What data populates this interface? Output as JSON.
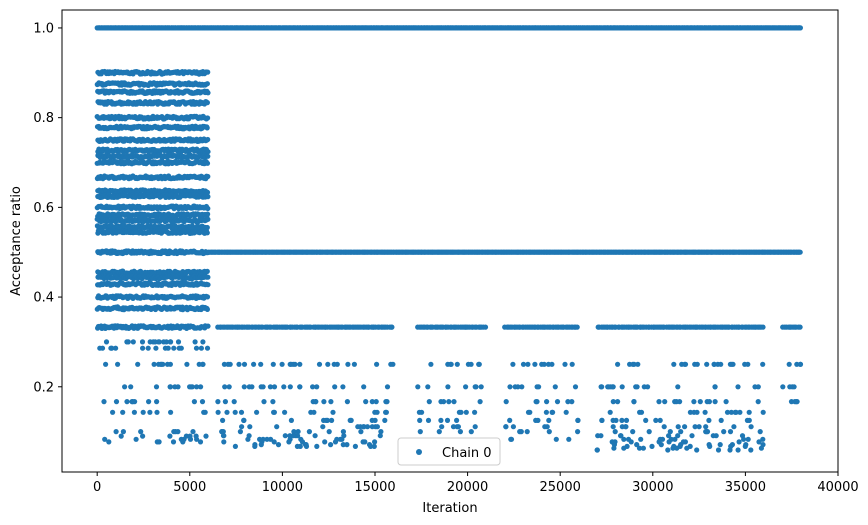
{
  "chart_data": {
    "type": "scatter",
    "xlabel": "Iteration",
    "ylabel": "Acceptance ratio",
    "xlim": [
      -1900,
      40000
    ],
    "ylim": [
      0.01,
      1.04
    ],
    "xticks": [
      0,
      5000,
      10000,
      15000,
      20000,
      25000,
      30000,
      35000,
      40000
    ],
    "xtick_labels": [
      "0",
      "5000",
      "10000",
      "15000",
      "20000",
      "25000",
      "30000",
      "35000",
      "40000"
    ],
    "yticks": [
      0.2,
      0.4,
      0.6,
      0.8,
      1.0
    ],
    "ytick_labels": [
      "0.2",
      "0.4",
      "0.6",
      "0.8",
      "1.0"
    ],
    "grid": false,
    "legend": {
      "position": "bottom-center",
      "entries": [
        "Chain 0"
      ]
    },
    "colors": {
      "series": "#1f77b4"
    },
    "series": [
      {
        "name": "Chain 0",
        "marker": "circle",
        "segments": [
          {
            "x_range": [
              0,
              6000
            ],
            "levels": [
              1.0,
              0.9,
              0.875,
              0.857,
              0.833,
              0.8,
              0.778,
              0.75,
              0.727,
              0.714,
              0.7,
              0.667,
              0.636,
              0.625,
              0.6,
              0.583,
              0.571,
              0.556,
              0.545,
              0.5,
              0.455,
              0.444,
              0.429,
              0.4,
              0.375,
              0.333,
              0.3,
              0.286,
              0.25,
              0.2,
              0.167,
              0.143,
              0.1,
              0.09,
              0.083,
              0.077
            ]
          },
          {
            "x_range": [
              6000,
              38000
            ],
            "levels": [
              1.0
            ]
          },
          {
            "x_range": [
              6000,
              38000
            ],
            "levels": [
              0.5
            ]
          },
          {
            "x_range": [
              6500,
              16000
            ],
            "levels": [
              0.333,
              0.25,
              0.2,
              0.167,
              0.143,
              0.125,
              0.111,
              0.1,
              0.091,
              0.083,
              0.077,
              0.071,
              0.067
            ]
          },
          {
            "x_range": [
              17300,
              21000
            ],
            "levels": [
              0.333,
              0.25,
              0.2,
              0.167,
              0.143,
              0.125,
              0.111,
              0.1
            ]
          },
          {
            "x_range": [
              22000,
              26000
            ],
            "levels": [
              0.333,
              0.25,
              0.2,
              0.167,
              0.143,
              0.125,
              0.111,
              0.1,
              0.083
            ]
          },
          {
            "x_range": [
              27000,
              36000
            ],
            "levels": [
              0.333,
              0.25,
              0.2,
              0.167,
              0.143,
              0.125,
              0.111,
              0.1,
              0.091,
              0.083,
              0.077,
              0.071,
              0.067,
              0.063,
              0.059
            ]
          },
          {
            "x_range": [
              37000,
              38000
            ],
            "levels": [
              0.333,
              0.25,
              0.2,
              0.167
            ]
          }
        ]
      }
    ]
  }
}
